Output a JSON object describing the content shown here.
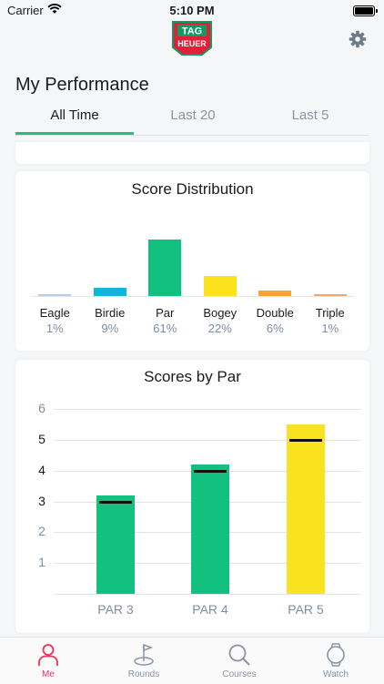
{
  "status_bar": {
    "carrier": "Carrier",
    "time": "5:10 PM"
  },
  "header": {
    "logo_top_text": "TAG",
    "logo_bottom_text": "HEUER",
    "settings_icon": "gear-icon"
  },
  "page_title": "My Performance",
  "tabs": [
    {
      "label": "All Time",
      "active": true
    },
    {
      "label": "Last 20",
      "active": false
    },
    {
      "label": "Last 5",
      "active": false
    }
  ],
  "score_distribution": {
    "title": "Score Distribution",
    "items": [
      {
        "label": "Eagle",
        "pct_text": "1%",
        "value": 1,
        "color": "#b8cdea"
      },
      {
        "label": "Birdie",
        "pct_text": "9%",
        "value": 9,
        "color": "#14b4db"
      },
      {
        "label": "Par",
        "pct_text": "61%",
        "value": 61,
        "color": "#12c07f"
      },
      {
        "label": "Bogey",
        "pct_text": "22%",
        "value": 22,
        "color": "#fbe21f"
      },
      {
        "label": "Double",
        "pct_text": "6%",
        "value": 6,
        "color": "#f5a530"
      },
      {
        "label": "Triple",
        "pct_text": "1%",
        "value": 1,
        "color": "#f0a66a"
      }
    ]
  },
  "chart_data": {
    "type": "bar",
    "title": "Scores by Par",
    "categories": [
      "PAR 3",
      "PAR 4",
      "PAR 5"
    ],
    "values": [
      3.2,
      4.2,
      5.5
    ],
    "reference": [
      3,
      4,
      5
    ],
    "colors": [
      "#12c07f",
      "#12c07f",
      "#fbe21f"
    ],
    "ylim": [
      0,
      6
    ],
    "yticks": [
      "1",
      "2",
      "3",
      "4",
      "5",
      "6"
    ],
    "grid": true
  },
  "nav": {
    "items": [
      {
        "label": "Me",
        "icon": "person-icon",
        "active": true
      },
      {
        "label": "Rounds",
        "icon": "golf-flag-icon",
        "active": false
      },
      {
        "label": "Courses",
        "icon": "search-icon",
        "active": false
      },
      {
        "label": "Watch",
        "icon": "watch-icon",
        "active": false
      }
    ],
    "active_color": "#e8355a"
  }
}
